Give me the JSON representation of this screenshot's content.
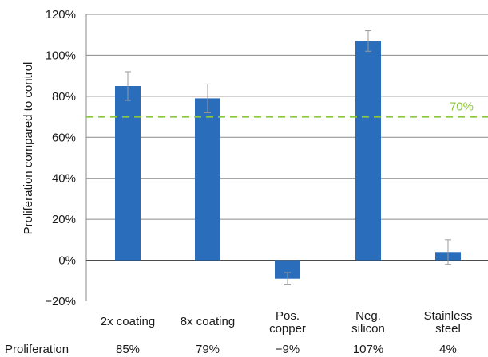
{
  "chart_data": {
    "type": "bar",
    "ylabel": "Proliferation compared to control",
    "ylim": [
      -20,
      120
    ],
    "yticks": [
      -20,
      0,
      20,
      40,
      60,
      80,
      100,
      120
    ],
    "ytick_labels": [
      "−20%",
      "0%",
      "20%",
      "40%",
      "60%",
      "80%",
      "100%",
      "120%"
    ],
    "grid": true,
    "categories": [
      [
        "2x coating"
      ],
      [
        "8x coating"
      ],
      [
        "Pos.",
        "copper"
      ],
      [
        "Neg.",
        "silicon"
      ],
      [
        "Stainless",
        "steel"
      ]
    ],
    "values": [
      85,
      79,
      -9,
      107,
      4
    ],
    "error": [
      7,
      7,
      3,
      5,
      6
    ],
    "bar_color": "#2a6ebb",
    "reference_line": {
      "value": 70,
      "label": "70%",
      "color": "#8cc63f",
      "style": "dashed"
    },
    "data_row": {
      "label": "Proliferation",
      "values": [
        "85%",
        "79%",
        "−9%",
        "107%",
        "4%"
      ]
    }
  }
}
